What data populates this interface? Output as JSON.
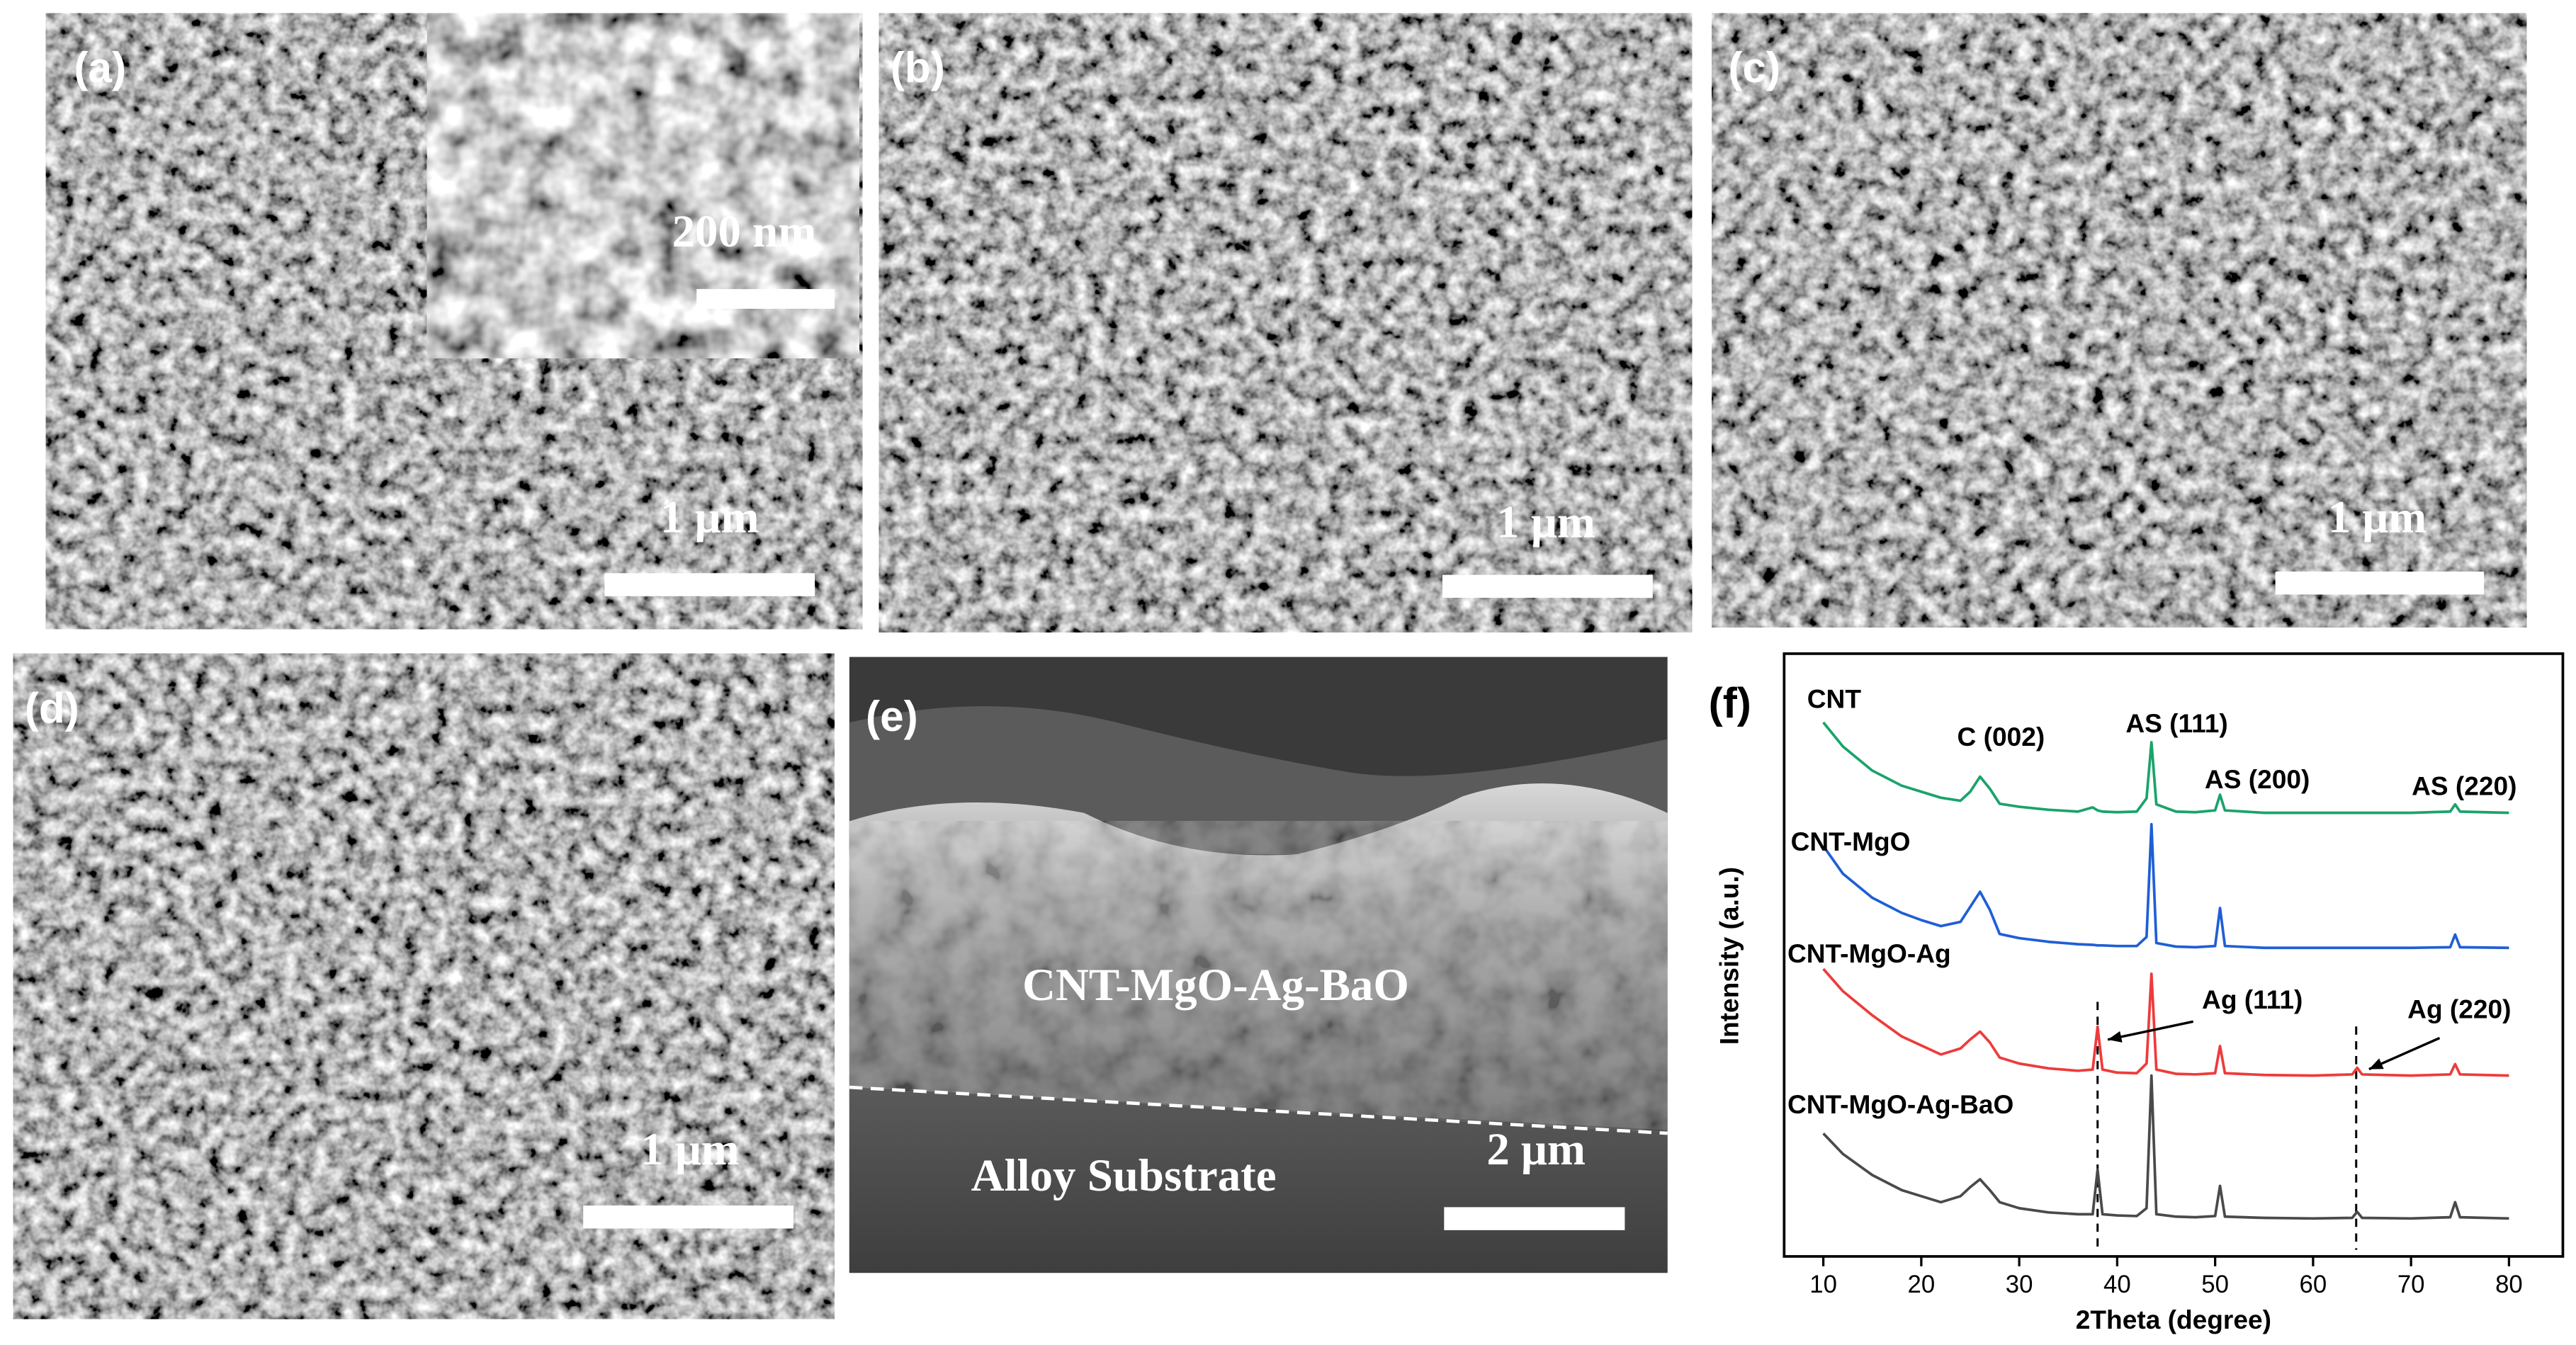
{
  "panels": [
    {
      "label": "(a)",
      "scale_bar": "1 μm",
      "inset_scale_bar": "200 nm"
    },
    {
      "label": "(b)",
      "scale_bar": "1 μm"
    },
    {
      "label": "(c)",
      "scale_bar": "1 μm"
    },
    {
      "label": "(d)",
      "scale_bar": "1 μm"
    },
    {
      "label": "(e)",
      "scale_bar": "2 μm",
      "layer_label": "CNT-MgO-Ag-BaO",
      "substrate_label": "Alloy Substrate"
    },
    {
      "label": "(f)"
    }
  ],
  "chart_data": {
    "type": "line",
    "x_label": "2Theta (degree)",
    "y_label": "Intensity (a.u.)",
    "xlim": [
      6,
      85.5
    ],
    "xticks": [
      10,
      20,
      30,
      40,
      50,
      60,
      70,
      80
    ],
    "ylim": [
      0,
      100
    ],
    "x": [
      10,
      12,
      15,
      18,
      20,
      22,
      24,
      25,
      26,
      27,
      28,
      30,
      33,
      36,
      37.5,
      38,
      38.5,
      40,
      42,
      43,
      43.5,
      44,
      46,
      48,
      50,
      50.5,
      51,
      55,
      60,
      64,
      64.5,
      65,
      70,
      74,
      74.5,
      75,
      80
    ],
    "series": [
      {
        "name": "CNT",
        "color": "#1aa36b",
        "values": [
          88.6,
          84.6,
          80.6,
          78.1,
          77.1,
          76.1,
          75.6,
          77.1,
          79.6,
          77.6,
          75.1,
          74.6,
          74.1,
          73.8,
          74.5,
          74,
          73.8,
          73.7,
          73.8,
          76,
          85.3,
          75,
          73.8,
          73.7,
          74,
          76.6,
          74,
          73.6,
          73.6,
          73.6,
          73.6,
          73.6,
          73.6,
          73.8,
          75,
          73.8,
          73.6
        ]
      },
      {
        "name": "CNT-MgO",
        "color": "#1f5fd6",
        "values": [
          68.1,
          63.5,
          59.5,
          57,
          55.8,
          54.8,
          55.5,
          58,
          60.5,
          57.5,
          53.5,
          52.8,
          52.2,
          51.8,
          51.7,
          51.6,
          51.6,
          51.5,
          51.5,
          53,
          71.7,
          52,
          51.4,
          51.3,
          51.5,
          57.8,
          51.5,
          51.2,
          51.2,
          51.2,
          51.2,
          51.2,
          51.2,
          51.3,
          53.4,
          51.3,
          51.2
        ]
      },
      {
        "name": "CNT-MgO-Ag",
        "color": "#ee3b3b",
        "values": [
          47.7,
          44,
          40,
          36.5,
          35,
          33.5,
          34.5,
          36,
          37.3,
          35.5,
          33,
          32,
          31.2,
          30.8,
          31,
          38.1,
          31,
          30.5,
          30.4,
          32,
          46.9,
          31,
          30.3,
          30.2,
          30.4,
          34.9,
          30.4,
          30.1,
          30,
          30.2,
          31.3,
          30.2,
          30,
          30.2,
          31.9,
          30.2,
          30
        ]
      },
      {
        "name": "CNT-MgO-Ag-BaO",
        "color": "#4a4a4a",
        "values": [
          20.4,
          17,
          13.5,
          11,
          10,
          9,
          10,
          11.5,
          12.8,
          11,
          9,
          8,
          7.3,
          7,
          7,
          14.4,
          7,
          6.8,
          6.7,
          8,
          30,
          7,
          6.6,
          6.5,
          6.7,
          11.7,
          6.6,
          6.4,
          6.3,
          6.4,
          7.4,
          6.4,
          6.3,
          6.5,
          9,
          6.5,
          6.3
        ]
      }
    ],
    "annotations": [
      "C (002)",
      "AS (111)",
      "AS (200)",
      "AS (220)",
      "Ag (111)",
      "Ag (220)"
    ],
    "reference_lines": [
      38,
      64.4
    ]
  }
}
